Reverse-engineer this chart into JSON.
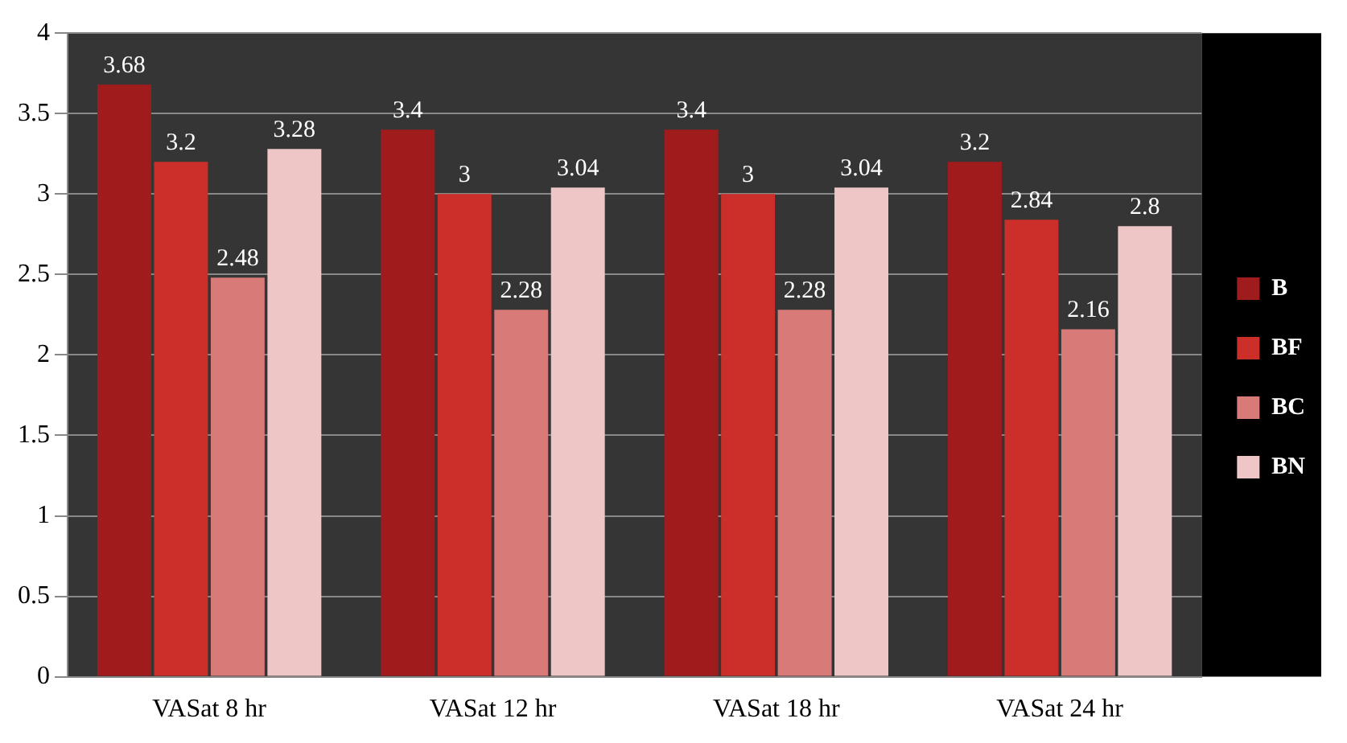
{
  "chart_data": {
    "type": "bar",
    "categories": [
      "VASat 8 hr",
      "VASat 12 hr",
      "VASat 18 hr",
      "VASat 24 hr"
    ],
    "series": [
      {
        "name": "B",
        "color": "#a01c1c",
        "values": [
          3.68,
          3.4,
          3.4,
          3.2
        ]
      },
      {
        "name": "BF",
        "color": "#cc2f2a",
        "values": [
          3.2,
          3,
          3,
          2.84
        ]
      },
      {
        "name": "BC",
        "color": "#d77a78",
        "values": [
          2.48,
          2.28,
          2.28,
          2.16
        ]
      },
      {
        "name": "BN",
        "color": "#efc6c6",
        "values": [
          3.28,
          3.04,
          3.04,
          2.8
        ]
      }
    ],
    "ylim": [
      0,
      4
    ],
    "yticks": [
      0,
      0.5,
      1,
      1.5,
      2,
      2.5,
      3,
      3.5,
      4
    ],
    "grid": "y",
    "legend": "right",
    "data_labels": true
  }
}
